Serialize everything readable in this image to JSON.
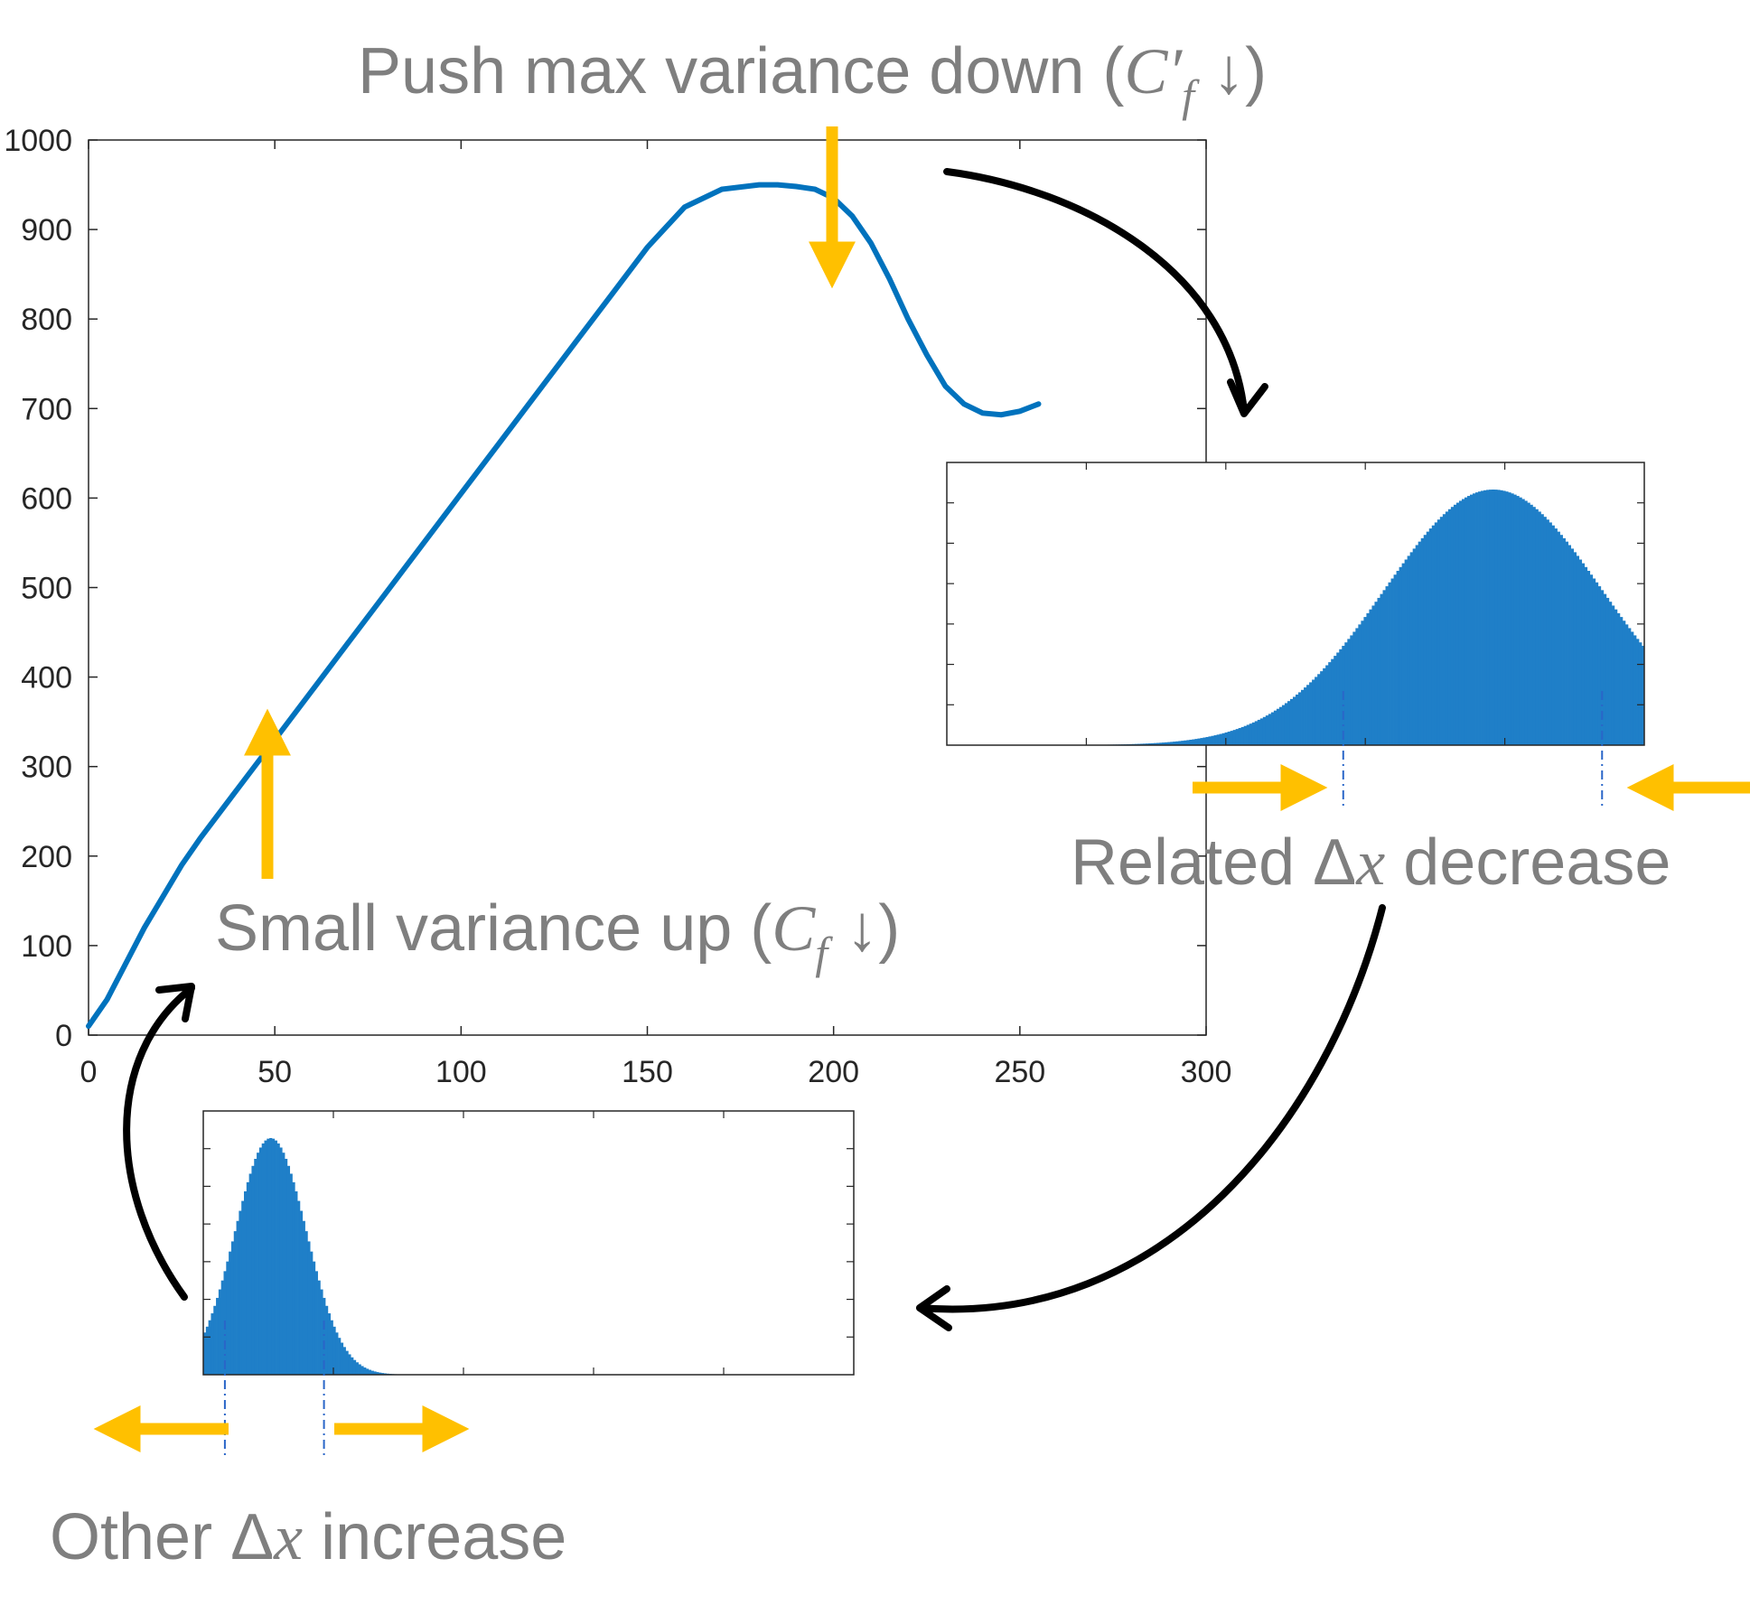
{
  "colors": {
    "curve": "#0072BD",
    "bars": "#1f7fc8",
    "arrow_yellow": "#FFC000",
    "arrow_black": "#000000",
    "annotation_text": "#7f7f7f",
    "axes": "#262626"
  },
  "annotations": {
    "push_max": {
      "text": "Push max variance down (",
      "math": "C′",
      "sub": "f",
      "tail": " ↓)"
    },
    "small_var": {
      "text": "Small variance up (",
      "math": "C",
      "sub": "f",
      "tail": " ↓)"
    },
    "related": {
      "text": "Related Δ",
      "math": "x",
      "tail": " decrease"
    },
    "other": {
      "text": "Other Δ",
      "math": "x",
      "tail": " increase"
    }
  },
  "chart_data": [
    {
      "type": "line",
      "title": "",
      "xlabel": "",
      "ylabel": "",
      "xlim": [
        0,
        300
      ],
      "ylim": [
        0,
        1000
      ],
      "xticks": [
        0,
        50,
        100,
        150,
        200,
        250,
        300
      ],
      "yticks": [
        0,
        100,
        200,
        300,
        400,
        500,
        600,
        700,
        800,
        900,
        1000
      ],
      "grid": false,
      "series": [
        {
          "x": [
            0,
            5,
            10,
            15,
            20,
            25,
            30,
            40,
            50,
            60,
            70,
            80,
            90,
            100,
            110,
            120,
            130,
            140,
            150,
            160,
            170,
            180,
            185,
            190,
            195,
            200,
            205,
            210,
            215,
            220,
            225,
            230,
            235,
            240,
            245,
            250,
            255
          ],
          "values": [
            10,
            40,
            80,
            120,
            155,
            190,
            220,
            275,
            330,
            385,
            440,
            495,
            550,
            605,
            660,
            715,
            770,
            825,
            880,
            925,
            945,
            950,
            950,
            948,
            945,
            935,
            915,
            885,
            845,
            800,
            760,
            725,
            705,
            695,
            693,
            697,
            705
          ]
        }
      ]
    },
    {
      "type": "bar",
      "title": "",
      "description_unused": "",
      "x_range": [
        0,
        255
      ],
      "mean": 200,
      "std": 40,
      "peak": 1,
      "markers": [
        145,
        240
      ]
    },
    {
      "type": "bar",
      "title": "",
      "x_range": [
        0,
        255
      ],
      "mean": 26,
      "std": 14,
      "peak": 1,
      "markers": [
        8,
        47
      ]
    }
  ]
}
